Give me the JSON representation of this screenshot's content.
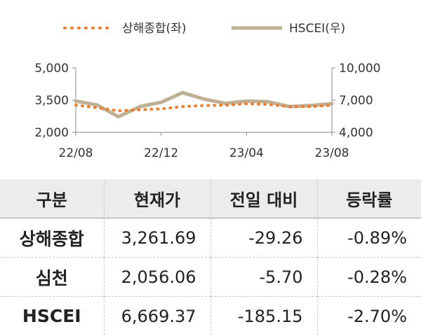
{
  "chart_data": {
    "type": "line",
    "legend": [
      {
        "name": "상해종합(좌)",
        "color": "#ED7D31",
        "style": "dotted"
      },
      {
        "name": "HSCEI(우)",
        "color": "#BFB093",
        "style": "solid"
      }
    ],
    "legend_position": "top-center",
    "x_ticks": [
      "22/08",
      "22/12",
      "23/04",
      "23/08"
    ],
    "y_left": {
      "range": [
        2000,
        5000
      ],
      "ticks": [
        "2,000",
        "3,500",
        "5,000"
      ]
    },
    "y_right": {
      "range": [
        4000,
        10000
      ],
      "ticks": [
        "4,000",
        "7,000",
        "10,000"
      ]
    },
    "grid": false,
    "series": [
      {
        "name": "상해종합(좌)",
        "axis": "left",
        "x": [
          "2022-08",
          "2022-09",
          "2022-10",
          "2022-11",
          "2022-12",
          "2023-01",
          "2023-02",
          "2023-03",
          "2023-04",
          "2023-05",
          "2023-06",
          "2023-07",
          "2023-08"
        ],
        "values": [
          3270,
          3140,
          3000,
          3050,
          3090,
          3200,
          3250,
          3260,
          3330,
          3300,
          3190,
          3200,
          3260
        ]
      },
      {
        "name": "HSCEI(우)",
        "axis": "right",
        "x": [
          "2022-08",
          "2022-09",
          "2022-10",
          "2022-11",
          "2022-12",
          "2023-01",
          "2023-02",
          "2023-03",
          "2023-04",
          "2023-05",
          "2023-06",
          "2023-07",
          "2023-08"
        ],
        "values": [
          6900,
          6550,
          5450,
          6400,
          6800,
          7700,
          7100,
          6700,
          6900,
          6850,
          6400,
          6500,
          6670
        ]
      }
    ]
  },
  "table": {
    "headers": [
      "구분",
      "현재가",
      "전일 대비",
      "등락률"
    ],
    "rows": [
      {
        "name": "상해종합",
        "price": "3,261.69",
        "change": "-29.26",
        "rate": "-0.89%"
      },
      {
        "name": "심천",
        "price": "2,056.06",
        "change": "-5.70",
        "rate": "-0.28%"
      },
      {
        "name": "HSCEI",
        "price": "6,669.37",
        "change": "-185.15",
        "rate": "-2.70%"
      }
    ]
  }
}
